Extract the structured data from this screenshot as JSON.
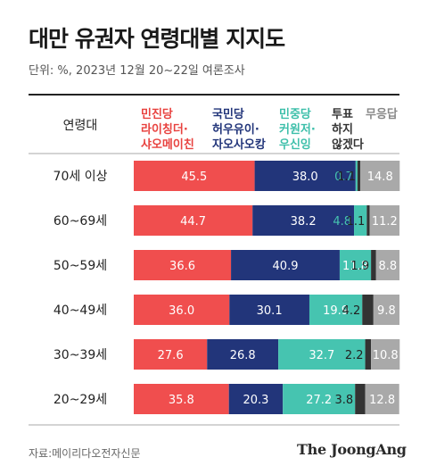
{
  "title": "대만 유권자 연령대별 지지도",
  "subtitle": "단위: %, 2023년 12월 20~22일 여론조사",
  "source": "자료:메이리다오전자신문",
  "brand": "The JoongAng",
  "chart_data": {
    "type": "bar",
    "stacked": true,
    "orientation": "horizontal",
    "row_header": "연령대",
    "categories": [
      "70세 이상",
      "60~69세",
      "50~59세",
      "40~49세",
      "30~39세",
      "20~29세"
    ],
    "series": [
      {
        "name": "민진당 라이칭더·샤오메이친",
        "header_lines": [
          "민진당",
          "라이칭더·",
          "샤오메이친"
        ],
        "color": "#f04e4e",
        "header_color": "#e8423f",
        "label_color": "#ffffff",
        "values": [
          45.5,
          44.7,
          36.6,
          36.0,
          27.6,
          35.8
        ]
      },
      {
        "name": "국민당 허우유이·자오사오캉",
        "header_lines": [
          "국민당",
          "허우유이·",
          "자오사오캉"
        ],
        "color": "#22357a",
        "header_color": "#22357a",
        "label_color": "#ffffff",
        "values": [
          38.0,
          38.2,
          40.9,
          30.1,
          26.8,
          20.3
        ]
      },
      {
        "name": "민중당 커원저·우신잉",
        "header_lines": [
          "민중당",
          "커원저·",
          "우신잉"
        ],
        "color": "#46c4b0",
        "header_color": "#3dbfaa",
        "label_color": "#ffffff",
        "values": [
          0.7,
          4.8,
          11.8,
          19.9,
          32.7,
          27.2
        ]
      },
      {
        "name": "투표하지 않겠다",
        "header_lines": [
          "투표",
          "하지",
          "않겠다"
        ],
        "color": "#333333",
        "header_color": "#333333",
        "label_color": "#222222",
        "values": [
          1.1,
          1.1,
          1.9,
          4.2,
          2.2,
          3.8
        ]
      },
      {
        "name": "무응답",
        "header_lines": [
          "무응답"
        ],
        "color": "#a9a9a9",
        "header_color": "#888888",
        "label_color": "#ffffff",
        "values": [
          14.8,
          11.2,
          8.8,
          9.8,
          10.8,
          12.8
        ]
      }
    ],
    "value_labels": [
      [
        "45.5",
        "38.0",
        "0.7",
        "1.1",
        "14.8"
      ],
      [
        "44.7",
        "38.2",
        "4.8",
        "1.1",
        "11.2"
      ],
      [
        "36.6",
        "40.9",
        "11.8",
        "1.9",
        "8.8"
      ],
      [
        "36.0",
        "30.1",
        "19.9",
        "4.2",
        "9.8"
      ],
      [
        "27.6",
        "26.8",
        "32.7",
        "2.2",
        "10.8"
      ],
      [
        "35.8",
        "20.3",
        "27.2",
        "3.8",
        "12.8"
      ]
    ],
    "xlim": [
      0,
      100
    ],
    "grid": false,
    "legend": "top (column headers)"
  }
}
